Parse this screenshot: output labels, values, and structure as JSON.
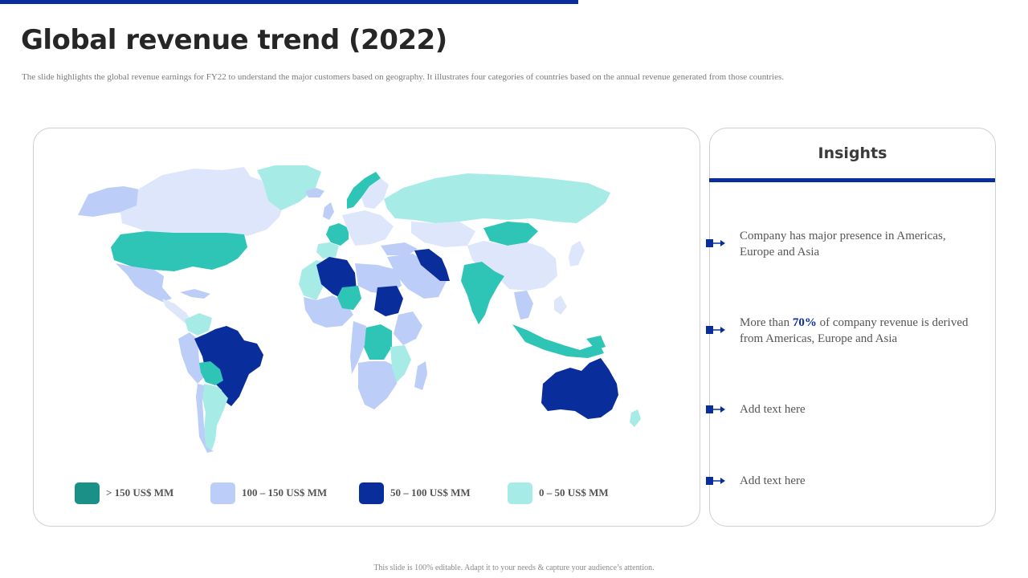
{
  "slide": {
    "title": "Global revenue trend (2022)",
    "subtitle": "The slide highlights  the global  revenue  earnings  for FY22 to understand the major customers based on geography.  It illustrates four categories  of countries based on the annual revenue generated  from those countries.",
    "footer": "This slide is 100% editable. Adapt it to your needs & capture your audience’s attention."
  },
  "colors": {
    "accent": "#0a2d9c",
    "very_light": "#dde6fb"
  },
  "legend": [
    {
      "label": "> 150 US$ MM",
      "color": "#1b9087"
    },
    {
      "label": "100 – 150 US$ MM",
      "color": "#bccdf8"
    },
    {
      "label": "50 – 100 US$ MM",
      "color": "#0a2d9c"
    },
    {
      "label": "0 – 50 US$ MM",
      "color": "#a6ebe6"
    }
  ],
  "map_regions": [
    {
      "name": "canada",
      "category": "very-light"
    },
    {
      "name": "alaska",
      "category": "100-150"
    },
    {
      "name": "greenland",
      "category": "0-50"
    },
    {
      "name": "usa",
      "category": ">150"
    },
    {
      "name": "mexico",
      "category": "100-150"
    },
    {
      "name": "brazil",
      "category": "50-100"
    },
    {
      "name": "bolivia",
      "category": ">150"
    },
    {
      "name": "argentina",
      "category": "0-50"
    },
    {
      "name": "france",
      "category": ">150"
    },
    {
      "name": "norway",
      "category": ">150"
    },
    {
      "name": "algeria",
      "category": "50-100"
    },
    {
      "name": "nigeria",
      "category": ">150"
    },
    {
      "name": "sudan",
      "category": "50-100"
    },
    {
      "name": "drc",
      "category": ">150"
    },
    {
      "name": "iran",
      "category": "50-100"
    },
    {
      "name": "india",
      "category": ">150"
    },
    {
      "name": "mongolia",
      "category": ">150"
    },
    {
      "name": "russia",
      "category": "0-50"
    },
    {
      "name": "china",
      "category": "very-light"
    },
    {
      "name": "indonesia",
      "category": ">150"
    },
    {
      "name": "australia",
      "category": "50-100"
    }
  ],
  "insights": {
    "title": "Insights",
    "items": [
      {
        "text": "Company has major presence in Americas, Europe and Asia"
      },
      {
        "text_before": "More than ",
        "highlight": "70%",
        "text_after": " of company revenue is derived from Americas,  Europe and Asia"
      },
      {
        "text": "Add text  here"
      },
      {
        "text": "Add text  here"
      }
    ]
  }
}
